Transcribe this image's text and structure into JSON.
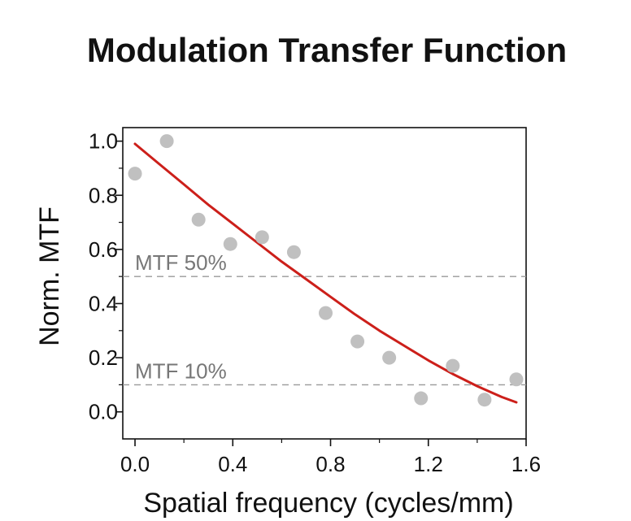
{
  "chart_data": {
    "type": "scatter",
    "title": "Modulation Transfer Function",
    "xlabel": "Spatial frequency (cycles/mm)",
    "ylabel": "Norm. MTF",
    "xlim": [
      -0.05,
      1.6
    ],
    "ylim": [
      -0.1,
      1.05
    ],
    "xticks": [
      "0.0",
      "0.4",
      "0.8",
      "1.2",
      "1.6"
    ],
    "xtick_values": [
      0.0,
      0.4,
      0.8,
      1.2,
      1.6
    ],
    "yticks": [
      "0.0",
      "0.2",
      "0.4",
      "0.6",
      "0.8",
      "1.0"
    ],
    "ytick_values": [
      0.0,
      0.2,
      0.4,
      0.6,
      0.8,
      1.0
    ],
    "grid": false,
    "series": [
      {
        "kind": "points",
        "color": "#c0c0c0",
        "x": [
          0.0,
          0.13,
          0.26,
          0.39,
          0.52,
          0.65,
          0.78,
          0.91,
          1.04,
          1.17,
          1.3,
          1.43,
          1.56
        ],
        "y": [
          0.88,
          1.0,
          0.71,
          0.62,
          0.645,
          0.59,
          0.365,
          0.26,
          0.2,
          0.05,
          0.17,
          0.045,
          0.12
        ]
      },
      {
        "kind": "fit-curve",
        "color": "#cc1f1a",
        "x": [
          0.0,
          0.1,
          0.2,
          0.3,
          0.4,
          0.5,
          0.6,
          0.7,
          0.8,
          0.9,
          1.0,
          1.1,
          1.2,
          1.3,
          1.4,
          1.5,
          1.56
        ],
        "y": [
          0.99,
          0.915,
          0.84,
          0.765,
          0.695,
          0.625,
          0.555,
          0.49,
          0.425,
          0.36,
          0.3,
          0.245,
          0.19,
          0.14,
          0.095,
          0.055,
          0.035
        ]
      }
    ],
    "reference_lines": [
      {
        "y": 0.5,
        "label": "MTF 50%",
        "color": "#999999",
        "label_x": 0.0,
        "label_y": 0.5
      },
      {
        "y": 0.1,
        "label": "MTF 10%",
        "color": "#999999",
        "label_x": 0.0,
        "label_y": 0.1
      }
    ]
  }
}
